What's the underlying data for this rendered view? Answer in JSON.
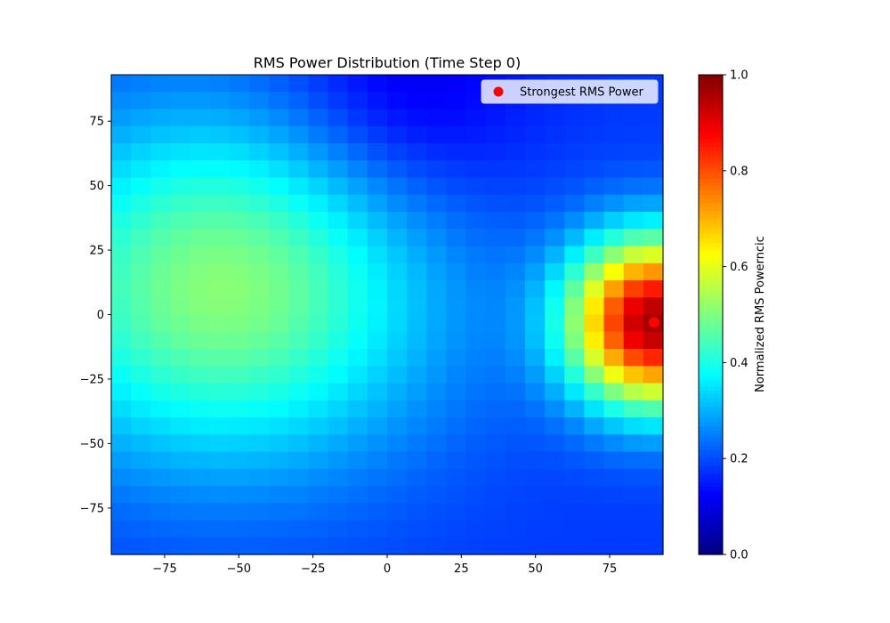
{
  "chart_data": {
    "type": "heatmap",
    "title": "RMS Power Distribution (Time Step 0)",
    "xlabel": "",
    "ylabel": "",
    "xlim": [
      -93,
      93
    ],
    "ylim": [
      -93,
      93
    ],
    "grid_n": 28,
    "x_ticks": [
      -75,
      -50,
      -25,
      0,
      25,
      50,
      75
    ],
    "y_ticks": [
      -75,
      -50,
      -25,
      0,
      25,
      50,
      75
    ],
    "x_tick_labels": [
      "−75",
      "−50",
      "−25",
      "0",
      "25",
      "50",
      "75"
    ],
    "y_tick_labels": [
      "−75",
      "−50",
      "−25",
      "0",
      "25",
      "50",
      "75"
    ],
    "colormap": "jet",
    "value_range": [
      0,
      1
    ],
    "colorbar": {
      "label": "Normalized RMS Powerncic",
      "ticks": [
        0.0,
        0.2,
        0.4,
        0.6,
        0.8,
        1.0
      ],
      "tick_labels": [
        "0.0",
        "0.2",
        "0.4",
        "0.6",
        "0.8",
        "1.0"
      ]
    },
    "sources": [
      {
        "x": 90,
        "y": -3,
        "strength": 0.78,
        "sigma_x": 20,
        "sigma_y": 23
      },
      {
        "x": -55,
        "y": 10,
        "strength": 0.33,
        "sigma_x": 50,
        "sigma_y": 48
      }
    ],
    "baseline": 0.18,
    "valley": {
      "x": 5,
      "y": 85,
      "depth": 0.1,
      "sigma_x": 30,
      "sigma_y": 35
    },
    "marker": {
      "x": 90,
      "y": -3,
      "color": "#ff0000"
    },
    "legend": {
      "position": "top-right",
      "entries": [
        {
          "label": "Strongest RMS Power",
          "color": "#ff0000"
        }
      ]
    }
  }
}
